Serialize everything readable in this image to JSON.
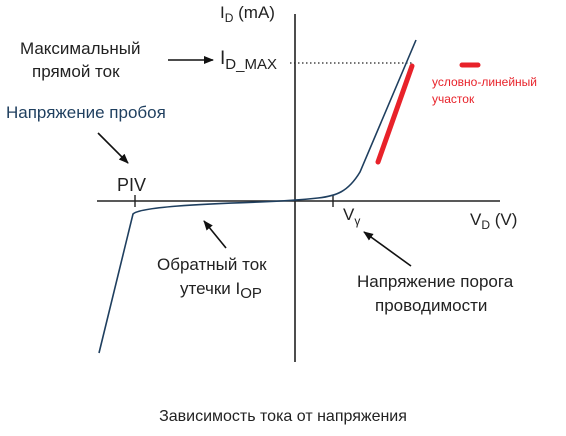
{
  "axes": {
    "y_label": "I",
    "y_sub": "D",
    "y_unit": " (mA)",
    "x_label": "V",
    "x_sub": "D",
    "x_unit": " (V)"
  },
  "marks": {
    "imax": "I",
    "imax_sub": "D_MAX",
    "piv": "PIV",
    "vy": "V",
    "vy_sub": "γ"
  },
  "annotations": {
    "max_forward_line1": "Максимальный",
    "max_forward_line2": "прямой ток",
    "breakdown": "Напряжение пробоя",
    "reverse_line1": "Обратный ток",
    "reverse_line2": "утечки  I",
    "reverse_sub": "OP",
    "threshold_line1": "Напряжение порога",
    "threshold_line2": "проводимости",
    "linear_line1": "условно-линейный",
    "linear_line2": "участок"
  },
  "caption": "Зависимость тока от напряжения",
  "colors": {
    "curve": "#1f3f5f",
    "linear": "#e8222a",
    "axis": "#222222",
    "text": "#222222"
  }
}
